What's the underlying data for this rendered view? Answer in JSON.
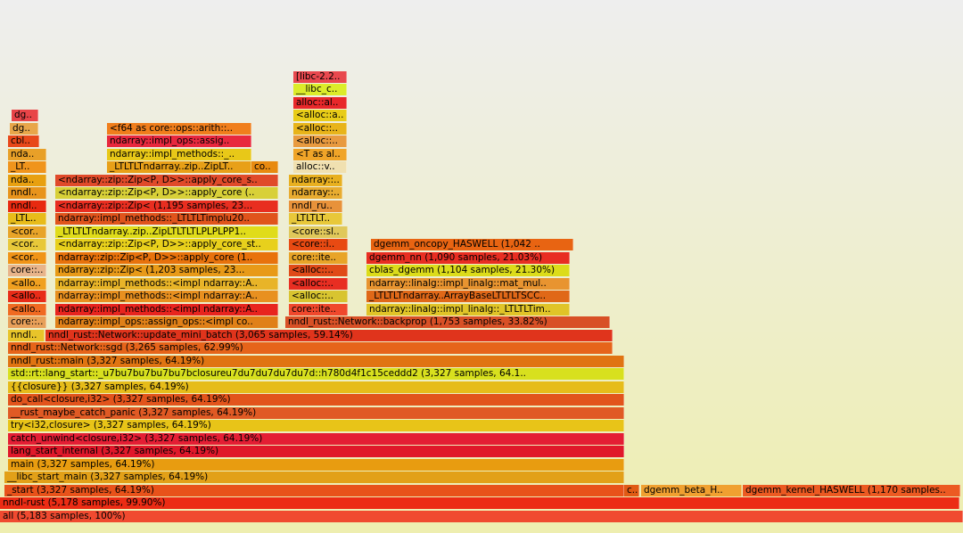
{
  "chart_data": {
    "type": "flamegraph",
    "frames": [
      {
        "label": "all (5,183 samples, 100%)",
        "depth": 0,
        "start": 0,
        "width": 1.0,
        "color": "#f04a30"
      },
      {
        "label": "nndl-rust (5,178 samples, 99.90%)",
        "depth": 1,
        "start": 0,
        "width": 0.9962,
        "color": "#ec2c14"
      },
      {
        "label": "_start (3,327 samples, 64.19%)",
        "depth": 2,
        "start": 0.0046,
        "width": 0.6435,
        "color": "#e8521a"
      },
      {
        "label": "c..",
        "depth": 2,
        "start": 0.6481,
        "width": 0.0157,
        "color": "#e05a14"
      },
      {
        "label": "dgemm_beta_H..",
        "depth": 2,
        "start": 0.6657,
        "width": 0.1046,
        "color": "#f0a030"
      },
      {
        "label": "dgemm_kernel_HASWELL (1,170 samples..",
        "depth": 2,
        "start": 0.7713,
        "width": 0.2259,
        "color": "#ec5a22"
      },
      {
        "label": "__libc_start_main (3,327 samples, 64.19%)",
        "depth": 3,
        "start": 0.0046,
        "width": 0.6435,
        "color": "#e2a018"
      },
      {
        "label": "main (3,327 samples, 64.19%)",
        "depth": 4,
        "start": 0.0083,
        "width": 0.6398,
        "color": "#e89c10"
      },
      {
        "label": "lang_start_internal (3,327 samples, 64.19%)",
        "depth": 5,
        "start": 0.0083,
        "width": 0.6398,
        "color": "#e0182a"
      },
      {
        "label": "catch_unwind<closure,i32> (3,327 samples, 64.19%)",
        "depth": 6,
        "start": 0.0083,
        "width": 0.6398,
        "color": "#e41e34"
      },
      {
        "label": "try<i32,closure> (3,327 samples, 64.19%)",
        "depth": 7,
        "start": 0.0083,
        "width": 0.6398,
        "color": "#e8c418"
      },
      {
        "label": "__rust_maybe_catch_panic (3,327 samples, 64.19%)",
        "depth": 8,
        "start": 0.0083,
        "width": 0.6398,
        "color": "#e05a24"
      },
      {
        "label": "do_call<closure,i32> (3,327 samples, 64.19%)",
        "depth": 9,
        "start": 0.0083,
        "width": 0.6398,
        "color": "#e2541c"
      },
      {
        "label": "{{closure}} (3,327 samples, 64.19%)",
        "depth": 10,
        "start": 0.0083,
        "width": 0.6398,
        "color": "#e6bc1a"
      },
      {
        "label": "std::rt::lang_start::_u7bu7bu7bu7bu7bclosureu7du7du7du7du7d::h780d4f1c15ceddd2 (3,327 samples, 64.1..",
        "depth": 11,
        "start": 0.0083,
        "width": 0.6398,
        "color": "#d8e01e"
      },
      {
        "label": "nndl_rust::main (3,327 samples, 64.19%)",
        "depth": 12,
        "start": 0.0083,
        "width": 0.6398,
        "color": "#e07412"
      },
      {
        "label": "nndl_rust::Network::sgd (3,265 samples, 62.99%)",
        "depth": 13,
        "start": 0.0083,
        "width": 0.6278,
        "color": "#e6641a"
      },
      {
        "label": "nndl..",
        "depth": 14,
        "start": 0.0083,
        "width": 0.038,
        "color": "#e8c42a"
      },
      {
        "label": "nndl_rust::Network::update_mini_batch (3,065 samples, 59.14%)",
        "depth": 14,
        "start": 0.0472,
        "width": 0.5889,
        "color": "#e0341c"
      },
      {
        "label": "core::..",
        "depth": 15,
        "start": 0.0083,
        "width": 0.0398,
        "color": "#e8a05a"
      },
      {
        "label": "ndarray::impl_ops::assign_ops::<impl co..",
        "depth": 15,
        "start": 0.0574,
        "width": 0.2315,
        "color": "#e08018"
      },
      {
        "label": "nndl_rust::Network::backprop (1,753 samples, 33.82%)",
        "depth": 15,
        "start": 0.2963,
        "width": 0.337,
        "color": "#d85026"
      },
      {
        "label": "<allo..",
        "depth": 16,
        "start": 0.0083,
        "width": 0.0398,
        "color": "#f06a22"
      },
      {
        "label": "ndarray::impl_methods::<impl ndarray::A..",
        "depth": 16,
        "start": 0.0574,
        "width": 0.2315,
        "color": "#e8241e"
      },
      {
        "label": "core::ite..",
        "depth": 16,
        "start": 0.3,
        "width": 0.0611,
        "color": "#f0482c"
      },
      {
        "label": "ndarray::linalg::impl_linalg::_LTLTLTim..",
        "depth": 16,
        "start": 0.3806,
        "width": 0.2111,
        "color": "#e0c428"
      },
      {
        "label": "<allo..",
        "depth": 17,
        "start": 0.0083,
        "width": 0.0398,
        "color": "#e82c18"
      },
      {
        "label": "ndarray::impl_methods::<impl ndarray::A..",
        "depth": 17,
        "start": 0.0574,
        "width": 0.2315,
        "color": "#e89020"
      },
      {
        "label": "<alloc::..",
        "depth": 17,
        "start": 0.3,
        "width": 0.0611,
        "color": "#d8c430"
      },
      {
        "label": "_LTLTLTndarray..ArrayBaseLTLTLTSCC..",
        "depth": 17,
        "start": 0.3806,
        "width": 0.2111,
        "color": "#e06818"
      },
      {
        "label": "<allo..",
        "depth": 18,
        "start": 0.0083,
        "width": 0.0398,
        "color": "#f0a020"
      },
      {
        "label": "ndarray::impl_methods::<impl ndarray::A..",
        "depth": 18,
        "start": 0.0574,
        "width": 0.2315,
        "color": "#e8b428"
      },
      {
        "label": "<alloc::..",
        "depth": 18,
        "start": 0.3,
        "width": 0.0611,
        "color": "#e82e22"
      },
      {
        "label": "ndarray::linalg::impl_linalg::mat_mul..",
        "depth": 18,
        "start": 0.3806,
        "width": 0.2111,
        "color": "#e89430"
      },
      {
        "label": "core::..",
        "depth": 19,
        "start": 0.0083,
        "width": 0.0398,
        "color": "#e8b48a"
      },
      {
        "label": "ndarray::zip::Zip< (1,203 samples, 23...",
        "depth": 19,
        "start": 0.0574,
        "width": 0.2315,
        "color": "#e89a18"
      },
      {
        "label": "<alloc::..",
        "depth": 19,
        "start": 0.3,
        "width": 0.0611,
        "color": "#e04a18"
      },
      {
        "label": "cblas_dgemm (1,104 samples, 21.30%)",
        "depth": 19,
        "start": 0.3806,
        "width": 0.2111,
        "color": "#dcdc1a"
      },
      {
        "label": "<cor..",
        "depth": 20,
        "start": 0.0083,
        "width": 0.0398,
        "color": "#f09418"
      },
      {
        "label": "ndarray::zip::Zip<P, D>>::apply_core (1..",
        "depth": 20,
        "start": 0.0574,
        "width": 0.2315,
        "color": "#e8720c"
      },
      {
        "label": "core::ite..",
        "depth": 20,
        "start": 0.3,
        "width": 0.0611,
        "color": "#e8a428"
      },
      {
        "label": "dgemm_nn (1,090 samples, 21.03%)",
        "depth": 20,
        "start": 0.3806,
        "width": 0.2111,
        "color": "#e82e22"
      },
      {
        "label": "<cor..",
        "depth": 21,
        "start": 0.0083,
        "width": 0.0398,
        "color": "#e8c83a"
      },
      {
        "label": "<ndarray::zip::Zip<P, D>>::apply_core_st..",
        "depth": 21,
        "start": 0.0574,
        "width": 0.2315,
        "color": "#e8d01c"
      },
      {
        "label": "<core::i..",
        "depth": 21,
        "start": 0.3,
        "width": 0.0611,
        "color": "#e84a12"
      },
      {
        "label": "dgemm_oncopy_HASWELL (1,042 ..",
        "depth": 21,
        "start": 0.3852,
        "width": 0.2102,
        "color": "#e86412"
      },
      {
        "label": "<cor..",
        "depth": 22,
        "start": 0.0083,
        "width": 0.0398,
        "color": "#e8a428"
      },
      {
        "label": "_LTLTLTndarray..zip..ZipLTLTLTLPLPLPP1..",
        "depth": 22,
        "start": 0.0574,
        "width": 0.2315,
        "color": "#e0dc1a"
      },
      {
        "label": "<core::sl..",
        "depth": 22,
        "start": 0.3,
        "width": 0.0611,
        "color": "#e0c85a"
      },
      {
        "label": "_LTL..",
        "depth": 23,
        "start": 0.0083,
        "width": 0.0398,
        "color": "#e8bc1a"
      },
      {
        "label": "ndarray::impl_methods::_LTLTLTimplu20..",
        "depth": 23,
        "start": 0.0574,
        "width": 0.2315,
        "color": "#e0541c"
      },
      {
        "label": "_LTLTLT..",
        "depth": 23,
        "start": 0.3,
        "width": 0.0556,
        "color": "#e8c83a"
      },
      {
        "label": "nndl..",
        "depth": 24,
        "start": 0.0083,
        "width": 0.0398,
        "color": "#e82a10"
      },
      {
        "label": "<ndarray::zip::Zip< (1,195 samples, 23...",
        "depth": 24,
        "start": 0.0574,
        "width": 0.2315,
        "color": "#e82e20"
      },
      {
        "label": "nndl_ru..",
        "depth": 24,
        "start": 0.3,
        "width": 0.0556,
        "color": "#e8923a"
      },
      {
        "label": "nndl..",
        "depth": 25,
        "start": 0.0083,
        "width": 0.0398,
        "color": "#e8941c"
      },
      {
        "label": "<ndarray::zip::Zip<P, D>>::apply_core (..",
        "depth": 25,
        "start": 0.0574,
        "width": 0.2315,
        "color": "#d8d038"
      },
      {
        "label": "ndarray::..",
        "depth": 25,
        "start": 0.3,
        "width": 0.0556,
        "color": "#e8ac30"
      },
      {
        "label": "nda..",
        "depth": 26,
        "start": 0.0083,
        "width": 0.0398,
        "color": "#e8a010"
      },
      {
        "label": "<ndarray::zip::Zip<P, D>>::apply_core_s..",
        "depth": 26,
        "start": 0.0574,
        "width": 0.2315,
        "color": "#e04a2a"
      },
      {
        "label": "ndarray::..",
        "depth": 26,
        "start": 0.3,
        "width": 0.0556,
        "color": "#e8b020"
      },
      {
        "label": "_LT..",
        "depth": 27,
        "start": 0.0083,
        "width": 0.0398,
        "color": "#f0941c"
      },
      {
        "label": "_LTLTLTndarray..zip..ZipLT..",
        "depth": 27,
        "start": 0.1111,
        "width": 0.15,
        "color": "#e8a018"
      },
      {
        "label": "co..",
        "depth": 27,
        "start": 0.2611,
        "width": 0.0278,
        "color": "#e88a10"
      },
      {
        "label": "alloc::v..",
        "depth": 27,
        "start": 0.3046,
        "width": 0.0556,
        "color": "#f0e0b0"
      },
      {
        "label": "nda..",
        "depth": 28,
        "start": 0.0083,
        "width": 0.0398,
        "color": "#e8a028"
      },
      {
        "label": "ndarray::impl_methods::_..",
        "depth": 28,
        "start": 0.1111,
        "width": 0.15,
        "color": "#e8c818"
      },
      {
        "label": "<T as al..",
        "depth": 28,
        "start": 0.3046,
        "width": 0.0556,
        "color": "#f0a428"
      },
      {
        "label": "cbl..",
        "depth": 29,
        "start": 0.0083,
        "width": 0.0324,
        "color": "#e8481a"
      },
      {
        "label": "ndarray::impl_ops::assig..",
        "depth": 29,
        "start": 0.1111,
        "width": 0.15,
        "color": "#e8283e"
      },
      {
        "label": "<alloc::..",
        "depth": 29,
        "start": 0.3046,
        "width": 0.0556,
        "color": "#e89a40"
      },
      {
        "label": "dg..",
        "depth": 30,
        "start": 0.0102,
        "width": 0.0296,
        "color": "#e8a64a"
      },
      {
        "label": "<f64 as core::ops::arith::..",
        "depth": 30,
        "start": 0.1111,
        "width": 0.15,
        "color": "#f07e1c"
      },
      {
        "label": "<alloc::..",
        "depth": 30,
        "start": 0.3046,
        "width": 0.0556,
        "color": "#e8b41a"
      },
      {
        "label": "dg..",
        "depth": 31,
        "start": 0.012,
        "width": 0.0278,
        "color": "#e84448"
      },
      {
        "label": "<alloc::a..",
        "depth": 31,
        "start": 0.3046,
        "width": 0.0556,
        "color": "#e8cc18"
      },
      {
        "label": "alloc::al..",
        "depth": 32,
        "start": 0.3046,
        "width": 0.0556,
        "color": "#e8282a"
      },
      {
        "label": "__libc_c..",
        "depth": 33,
        "start": 0.3046,
        "width": 0.0556,
        "color": "#dcec2a"
      },
      {
        "label": "[libc-2.2..",
        "depth": 34,
        "start": 0.3046,
        "width": 0.0556,
        "color": "#e8484e"
      }
    ]
  }
}
